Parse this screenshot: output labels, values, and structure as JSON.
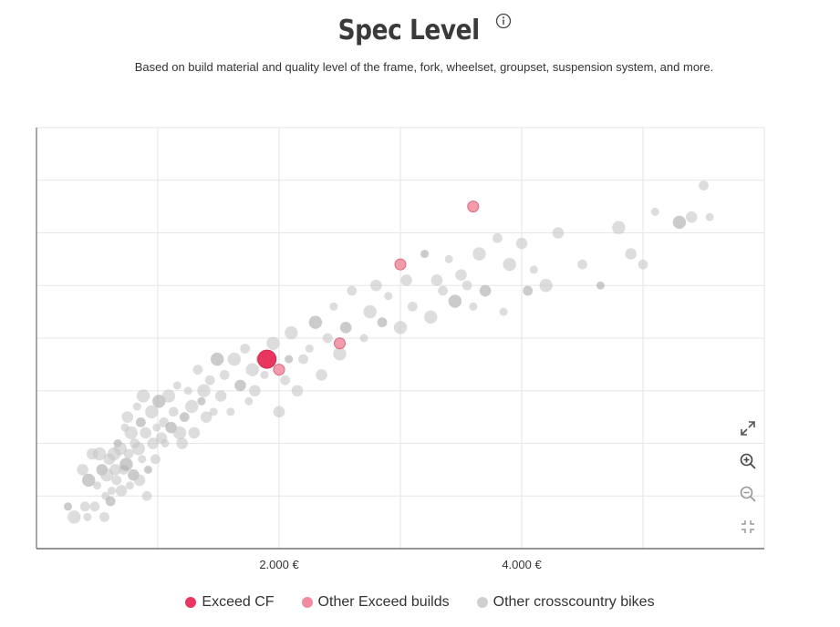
{
  "header": {
    "title": "Spec Level",
    "subtitle": "Based on build material and quality level of the frame, fork, wheelset, groupset, suspension system, and more."
  },
  "chart_data": {
    "type": "scatter",
    "title": "Spec Level",
    "subtitle": "Based on build material and quality level of the frame, fork, wheelset, groupset, suspension system, and more.",
    "xlabel": "",
    "ylabel": "",
    "x_unit": "€",
    "xlim": [
      0,
      6000
    ],
    "ylim": [
      0,
      8
    ],
    "x_ticks": [
      2000,
      4000
    ],
    "x_tick_labels": [
      "2.000 €",
      "4.000 €"
    ],
    "y_tick_labels_shown": false,
    "grid": true,
    "legend_position": "bottom-center",
    "series": [
      {
        "name": "Exceed CF",
        "color": "#e8365e",
        "points": [
          [
            1900,
            3.6
          ]
        ]
      },
      {
        "name": "Other Exceed builds",
        "color": "#f08a9e",
        "points": [
          [
            2000,
            3.4
          ],
          [
            2500,
            3.9
          ],
          [
            3000,
            5.4
          ],
          [
            3600,
            6.5
          ]
        ]
      },
      {
        "name": "Other crosscountry bikes",
        "color": "#c8c8c8",
        "points": [
          [
            260,
            0.8
          ],
          [
            310,
            0.6
          ],
          [
            380,
            1.5
          ],
          [
            400,
            0.8
          ],
          [
            420,
            0.6
          ],
          [
            430,
            1.3
          ],
          [
            460,
            1.8
          ],
          [
            480,
            0.8
          ],
          [
            500,
            1.2
          ],
          [
            520,
            1.8
          ],
          [
            540,
            1.5
          ],
          [
            560,
            0.6
          ],
          [
            570,
            1.0
          ],
          [
            580,
            1.4
          ],
          [
            600,
            1.7
          ],
          [
            610,
            0.9
          ],
          [
            620,
            1.1
          ],
          [
            640,
            1.8
          ],
          [
            650,
            1.5
          ],
          [
            660,
            1.3
          ],
          [
            670,
            2.0
          ],
          [
            690,
            1.9
          ],
          [
            700,
            1.1
          ],
          [
            720,
            1.5
          ],
          [
            730,
            2.3
          ],
          [
            740,
            1.6
          ],
          [
            750,
            2.5
          ],
          [
            760,
            1.8
          ],
          [
            770,
            1.2
          ],
          [
            780,
            2.2
          ],
          [
            800,
            1.4
          ],
          [
            810,
            2.0
          ],
          [
            830,
            2.7
          ],
          [
            840,
            1.9
          ],
          [
            850,
            1.3
          ],
          [
            860,
            2.4
          ],
          [
            870,
            1.7
          ],
          [
            880,
            2.9
          ],
          [
            900,
            2.2
          ],
          [
            910,
            1.0
          ],
          [
            920,
            1.5
          ],
          [
            950,
            2.6
          ],
          [
            960,
            2.0
          ],
          [
            980,
            1.7
          ],
          [
            990,
            2.3
          ],
          [
            1010,
            2.8
          ],
          [
            1030,
            2.1
          ],
          [
            1050,
            2.4
          ],
          [
            1060,
            2.0
          ],
          [
            1090,
            2.9
          ],
          [
            1110,
            2.3
          ],
          [
            1130,
            2.6
          ],
          [
            1160,
            3.1
          ],
          [
            1180,
            2.2
          ],
          [
            1200,
            2.0
          ],
          [
            1220,
            2.5
          ],
          [
            1250,
            3.0
          ],
          [
            1280,
            2.7
          ],
          [
            1300,
            2.2
          ],
          [
            1330,
            3.4
          ],
          [
            1360,
            2.8
          ],
          [
            1380,
            3.0
          ],
          [
            1400,
            2.5
          ],
          [
            1430,
            3.2
          ],
          [
            1460,
            2.6
          ],
          [
            1490,
            3.6
          ],
          [
            1520,
            2.9
          ],
          [
            1550,
            3.3
          ],
          [
            1600,
            2.6
          ],
          [
            1630,
            3.6
          ],
          [
            1680,
            3.1
          ],
          [
            1720,
            3.8
          ],
          [
            1750,
            2.8
          ],
          [
            1780,
            3.4
          ],
          [
            1800,
            3.0
          ],
          [
            1850,
            3.6
          ],
          [
            1880,
            3.3
          ],
          [
            1950,
            3.9
          ],
          [
            2000,
            2.6
          ],
          [
            2050,
            3.2
          ],
          [
            2080,
            3.6
          ],
          [
            2100,
            4.1
          ],
          [
            2150,
            3.0
          ],
          [
            2200,
            3.6
          ],
          [
            2250,
            3.8
          ],
          [
            2300,
            4.3
          ],
          [
            2350,
            3.3
          ],
          [
            2400,
            4.0
          ],
          [
            2450,
            4.6
          ],
          [
            2500,
            3.7
          ],
          [
            2550,
            4.2
          ],
          [
            2600,
            4.9
          ],
          [
            2700,
            4.0
          ],
          [
            2750,
            4.5
          ],
          [
            2800,
            5.0
          ],
          [
            2850,
            4.3
          ],
          [
            2900,
            4.8
          ],
          [
            3000,
            4.2
          ],
          [
            3050,
            5.1
          ],
          [
            3100,
            4.6
          ],
          [
            3200,
            5.6
          ],
          [
            3250,
            4.4
          ],
          [
            3300,
            5.1
          ],
          [
            3350,
            4.9
          ],
          [
            3400,
            5.5
          ],
          [
            3450,
            4.7
          ],
          [
            3500,
            5.2
          ],
          [
            3550,
            5.0
          ],
          [
            3600,
            4.6
          ],
          [
            3650,
            5.6
          ],
          [
            3700,
            4.9
          ],
          [
            3800,
            5.9
          ],
          [
            3850,
            4.5
          ],
          [
            3900,
            5.4
          ],
          [
            4000,
            5.8
          ],
          [
            4050,
            4.9
          ],
          [
            4100,
            5.3
          ],
          [
            4200,
            5.0
          ],
          [
            4300,
            6.0
          ],
          [
            4500,
            5.4
          ],
          [
            4650,
            5.0
          ],
          [
            4800,
            6.1
          ],
          [
            4900,
            5.6
          ],
          [
            5000,
            5.4
          ],
          [
            5100,
            6.4
          ],
          [
            5300,
            6.2
          ],
          [
            5400,
            6.3
          ],
          [
            5500,
            6.9
          ],
          [
            5550,
            6.3
          ]
        ]
      }
    ]
  },
  "legend": {
    "items": [
      {
        "label": "Exceed CF",
        "color": "#e8365e"
      },
      {
        "label": "Other Exceed builds",
        "color": "#f08a9e"
      },
      {
        "label": "Other crosscountry bikes",
        "color": "#c8c8c8"
      }
    ]
  },
  "tools": {
    "icons": [
      "expand-icon",
      "zoom-in-icon",
      "zoom-out-icon",
      "collapse-icon"
    ]
  }
}
